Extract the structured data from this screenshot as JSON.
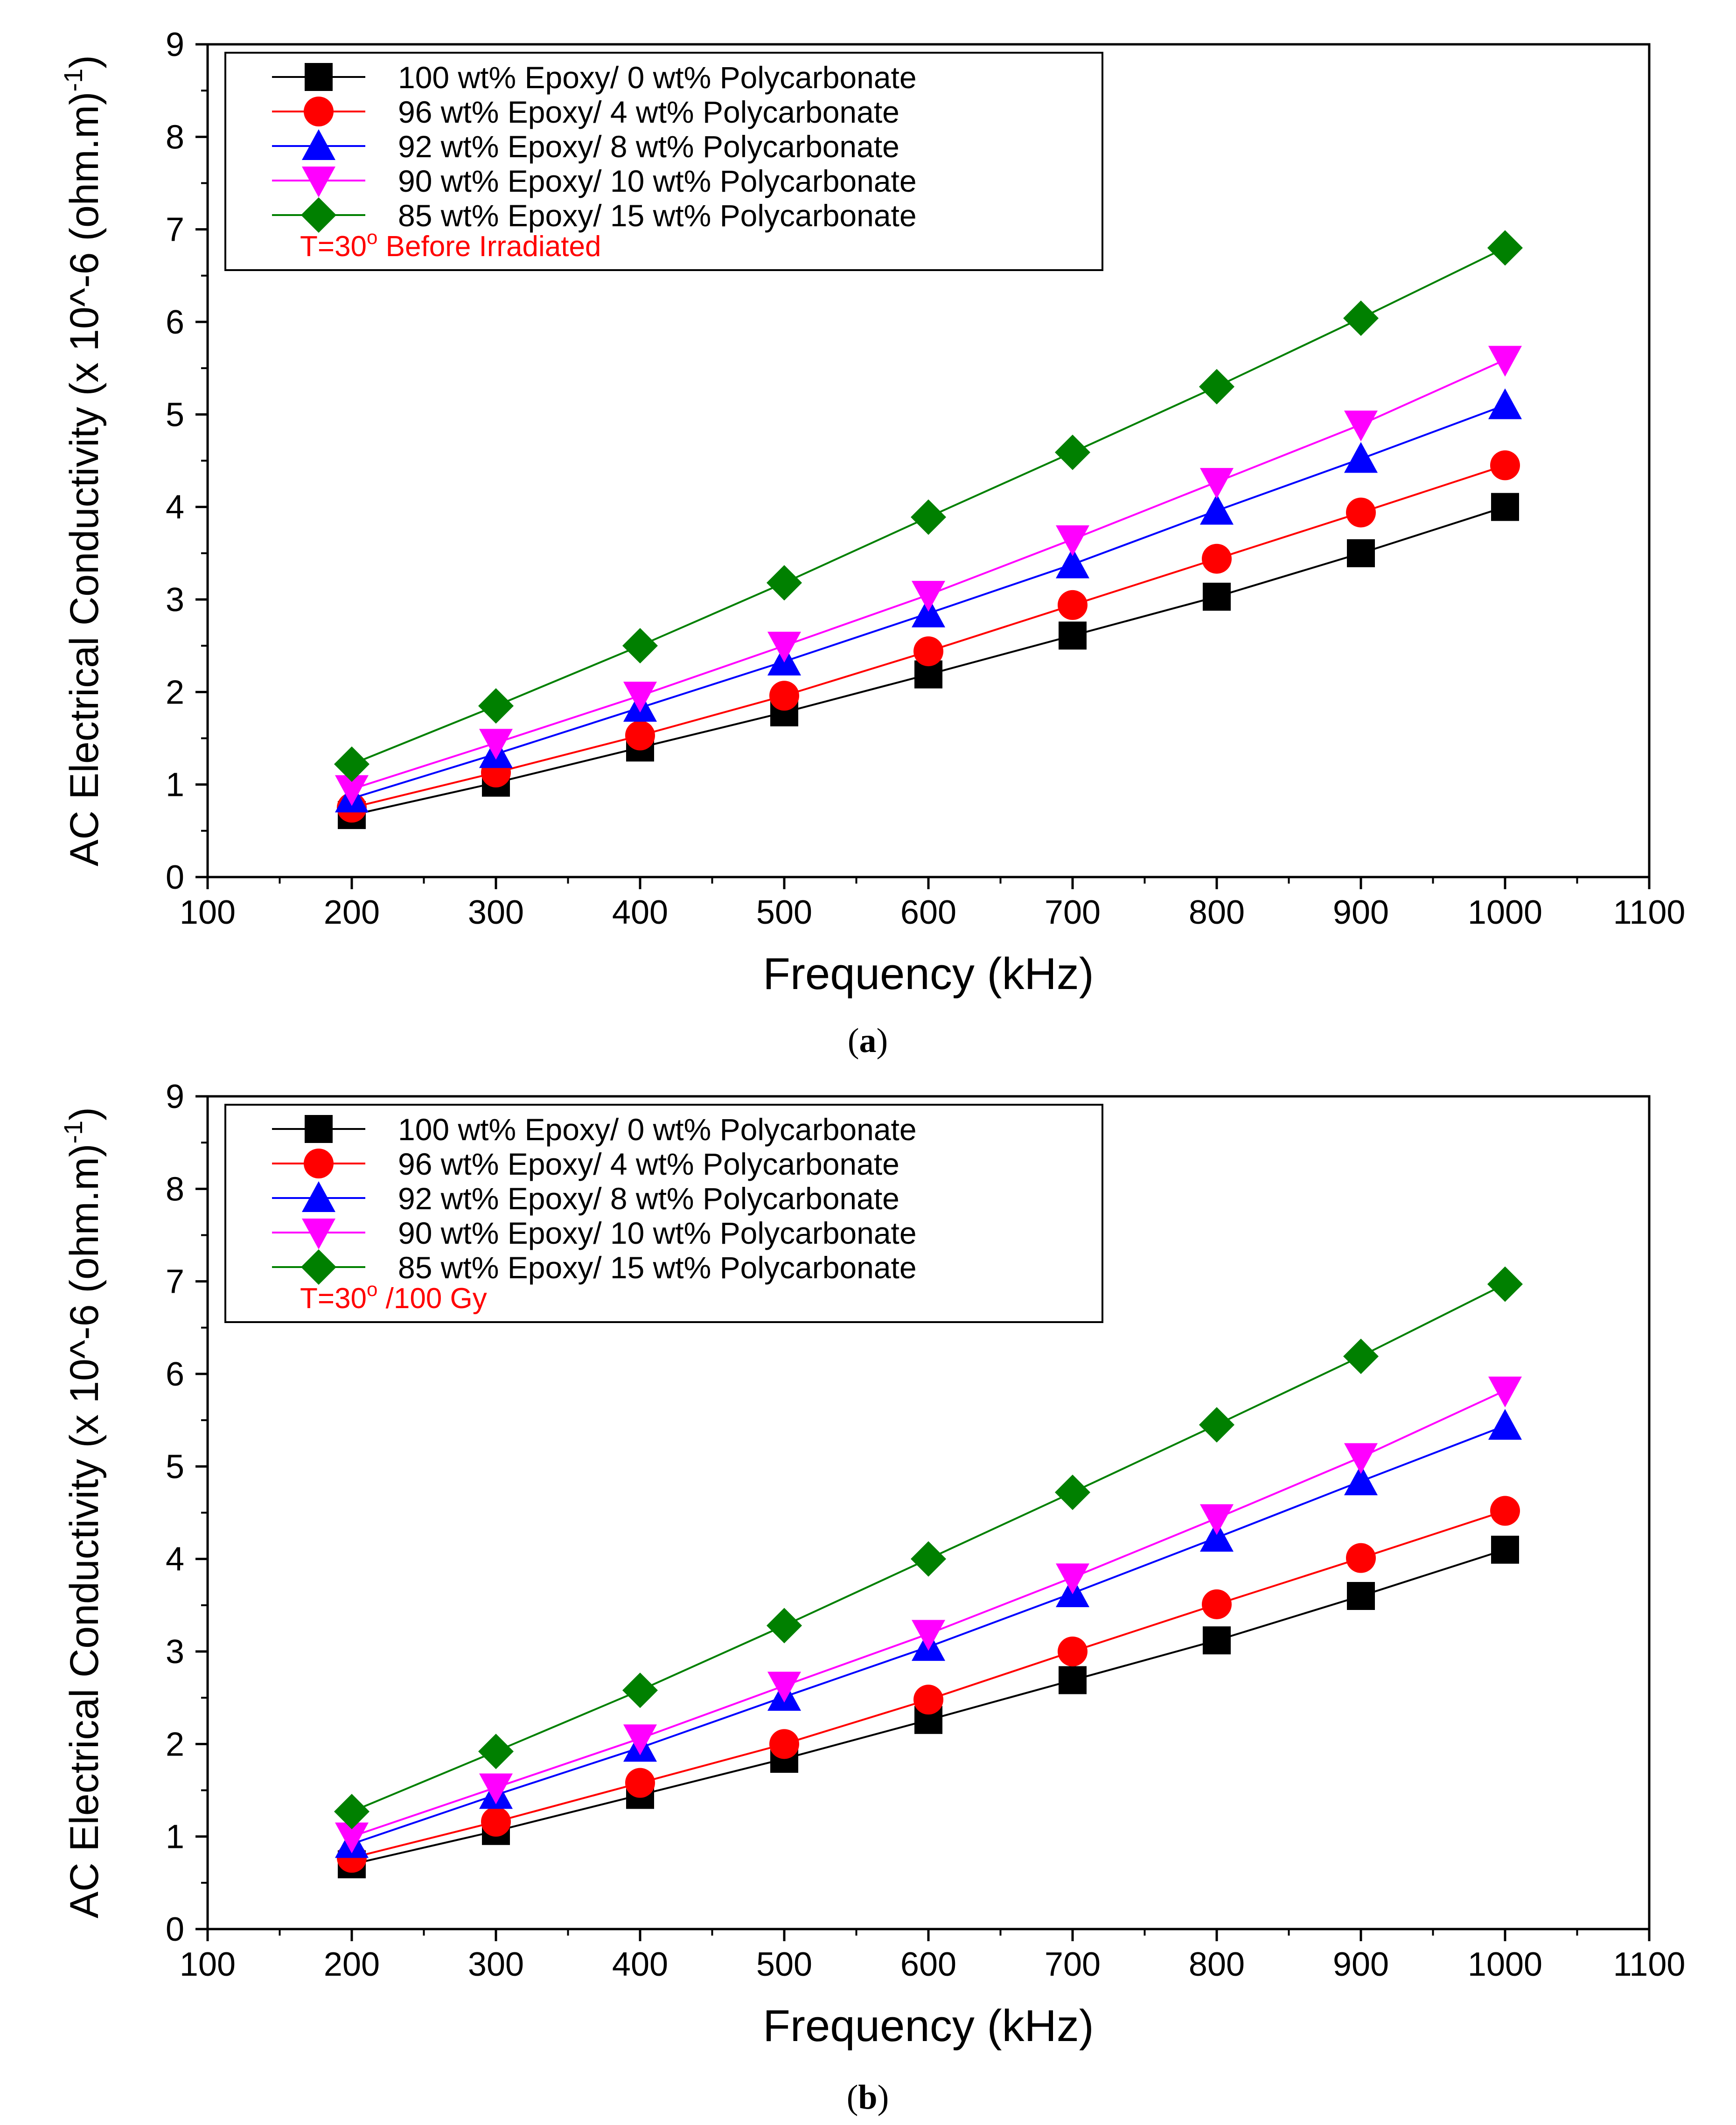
{
  "figure": {
    "caption_a": {
      "open": "(",
      "letter": "a",
      "close": ")"
    },
    "caption_b": {
      "open": "(",
      "letter": "b",
      "close": ")"
    }
  },
  "colors": {
    "s100": "#000000",
    "s96": "#ff0000",
    "s92": "#0000ff",
    "s90": "#ff00ff",
    "s85": "#008000",
    "annotation": "#ff0000",
    "axis": "#000000"
  },
  "chart_data": [
    {
      "type": "line",
      "panel": "a",
      "xlabel": "Frequency (kHz)",
      "ylabel_main": "AC Electrical Conductivity (x 10^-6 (ohm.m)",
      "ylabel_sup": "-1",
      "ylabel_close": ")",
      "xlim": [
        100,
        1100
      ],
      "ylim": [
        0,
        9
      ],
      "xticks": [
        "100",
        "200",
        "300",
        "400",
        "500",
        "600",
        "700",
        "800",
        "900",
        "1000",
        "1100"
      ],
      "yticks": [
        "0",
        "1",
        "2",
        "3",
        "4",
        "5",
        "6",
        "7",
        "8",
        "9"
      ],
      "legend_position": "top-left",
      "annotation": {
        "prefix": "T=30",
        "sup": "o",
        "suffix": " Before Irradiated"
      },
      "x": [
        200,
        300,
        400,
        500,
        600,
        700,
        800,
        900,
        1000
      ],
      "series": [
        {
          "name": "100 wt% Epoxy/ 0 wt% Polycarbonate",
          "marker": "square",
          "values": [
            0.67,
            1.02,
            1.4,
            1.78,
            2.19,
            2.61,
            3.03,
            3.5,
            4.0
          ]
        },
        {
          "name": "96 wt% Epoxy/ 4 wt% Polycarbonate",
          "marker": "circle",
          "values": [
            0.75,
            1.13,
            1.53,
            1.96,
            2.44,
            2.94,
            3.44,
            3.94,
            4.45
          ]
        },
        {
          "name": "92 wt% Epoxy/ 8 wt% Polycarbonate",
          "marker": "triangle-up",
          "values": [
            0.85,
            1.33,
            1.83,
            2.33,
            2.85,
            3.38,
            3.96,
            4.52,
            5.1
          ]
        },
        {
          "name": "90 wt% Epoxy/ 10 wt% Polycarbonate",
          "marker": "triangle-down",
          "values": [
            0.95,
            1.45,
            1.96,
            2.5,
            3.05,
            3.65,
            4.27,
            4.89,
            5.59
          ]
        },
        {
          "name": "85 wt% Epoxy/ 15 wt% Polycarbonate",
          "marker": "diamond",
          "values": [
            1.22,
            1.85,
            2.5,
            3.18,
            3.89,
            4.59,
            5.3,
            6.04,
            6.8
          ]
        }
      ]
    },
    {
      "type": "line",
      "panel": "b",
      "xlabel": "Frequency (kHz)",
      "ylabel_main": "AC Electrical Conductivity (x 10^-6 (ohm.m)",
      "ylabel_sup": "-1",
      "ylabel_close": ")",
      "xlim": [
        100,
        1100
      ],
      "ylim": [
        0,
        9
      ],
      "xticks": [
        "100",
        "200",
        "300",
        "400",
        "500",
        "600",
        "700",
        "800",
        "900",
        "1000",
        "1100"
      ],
      "yticks": [
        "0",
        "1",
        "2",
        "3",
        "4",
        "5",
        "6",
        "7",
        "8",
        "9"
      ],
      "legend_position": "top-left",
      "annotation": {
        "prefix": "T=30",
        "sup": "o",
        "suffix": " /100 Gy"
      },
      "x": [
        200,
        300,
        400,
        500,
        600,
        700,
        800,
        900,
        1000
      ],
      "series": [
        {
          "name": "100 wt% Epoxy/ 0 wt% Polycarbonate",
          "marker": "square",
          "values": [
            0.7,
            1.06,
            1.45,
            1.84,
            2.26,
            2.69,
            3.12,
            3.6,
            4.1
          ]
        },
        {
          "name": "96 wt% Epoxy/ 4 wt% Polycarbonate",
          "marker": "circle",
          "values": [
            0.77,
            1.16,
            1.58,
            2.0,
            2.48,
            3.0,
            3.51,
            4.01,
            4.52
          ]
        },
        {
          "name": "92 wt% Epoxy/ 8 wt% Polycarbonate",
          "marker": "triangle-up",
          "values": [
            0.92,
            1.45,
            1.96,
            2.51,
            3.05,
            3.63,
            4.23,
            4.84,
            5.44
          ]
        },
        {
          "name": "90 wt% Epoxy/ 10 wt% Polycarbonate",
          "marker": "triangle-down",
          "values": [
            1.0,
            1.53,
            2.06,
            2.63,
            3.19,
            3.8,
            4.44,
            5.1,
            5.82
          ]
        },
        {
          "name": "85 wt% Epoxy/ 15 wt% Polycarbonate",
          "marker": "diamond",
          "values": [
            1.27,
            1.92,
            2.58,
            3.28,
            4.0,
            4.72,
            5.45,
            6.19,
            6.97
          ]
        }
      ]
    }
  ]
}
